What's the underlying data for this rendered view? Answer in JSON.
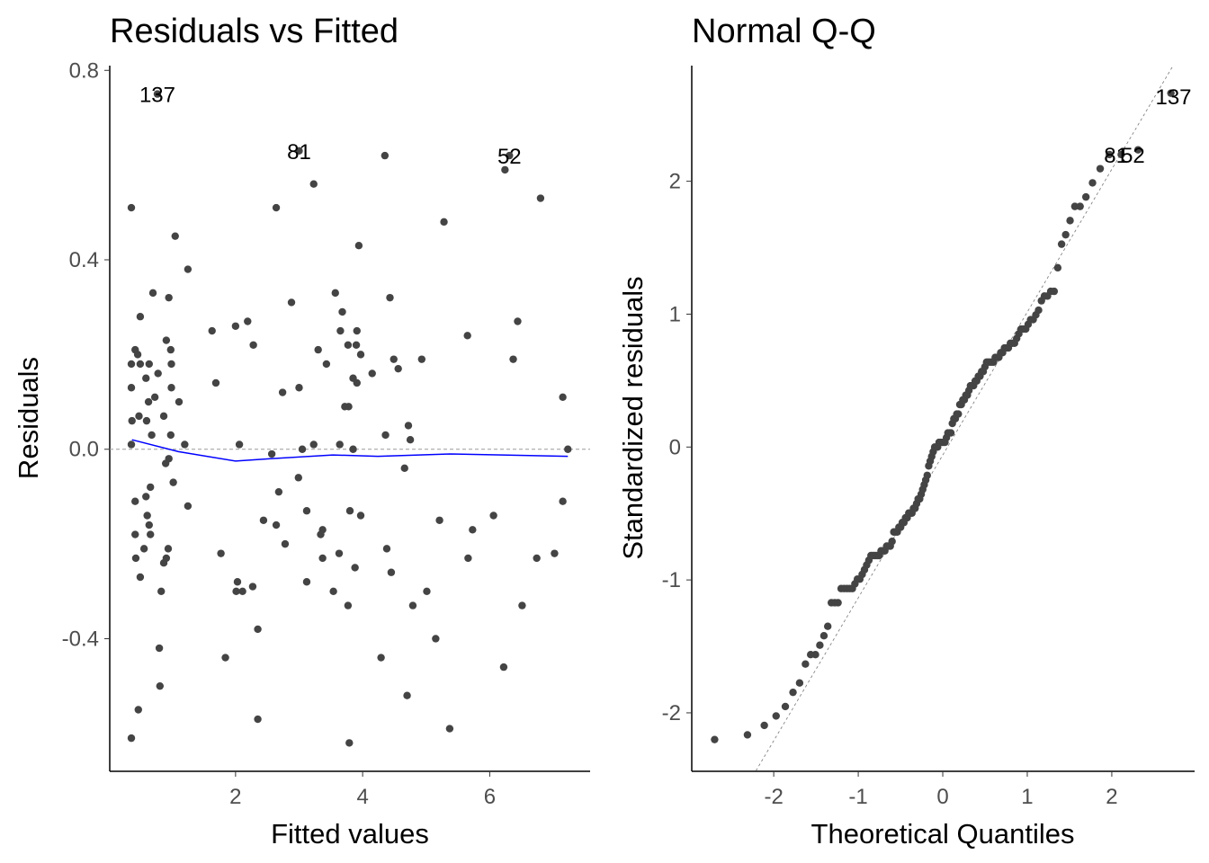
{
  "chart_data": [
    {
      "type": "scatter",
      "title": "Residuals vs Fitted",
      "xlabel": "Fitted values",
      "ylabel": "Residuals",
      "xlim": [
        0.02,
        7.58
      ],
      "ylim": [
        -0.68,
        0.81
      ],
      "xticks": [
        2,
        4,
        6
      ],
      "xtick_labels": [
        "2",
        "4",
        "6"
      ],
      "yticks": [
        -0.4,
        0.0,
        0.4,
        0.8
      ],
      "ytick_labels": [
        "-0.4",
        "0.0",
        "0.4",
        "0.8"
      ],
      "grid": false,
      "point_color": "#444444",
      "smooth_color": "#0000ff",
      "reference_line": {
        "y": 0,
        "style": "dashed",
        "color": "#999999"
      },
      "points": [
        [
          0.77,
          0.75
        ],
        [
          3.0,
          0.63
        ],
        [
          4.35,
          0.62
        ],
        [
          6.24,
          0.59
        ],
        [
          6.31,
          0.62
        ],
        [
          3.23,
          0.56
        ],
        [
          6.8,
          0.53
        ],
        [
          0.36,
          0.51
        ],
        [
          2.64,
          0.51
        ],
        [
          5.28,
          0.48
        ],
        [
          1.05,
          0.45
        ],
        [
          3.94,
          0.43
        ],
        [
          1.25,
          0.38
        ],
        [
          0.7,
          0.33
        ],
        [
          3.57,
          0.33
        ],
        [
          0.95,
          0.32
        ],
        [
          4.43,
          0.32
        ],
        [
          2.88,
          0.31
        ],
        [
          3.68,
          0.29
        ],
        [
          0.5,
          0.28
        ],
        [
          6.44,
          0.27
        ],
        [
          2.19,
          0.27
        ],
        [
          2.0,
          0.26
        ],
        [
          1.63,
          0.25
        ],
        [
          3.65,
          0.25
        ],
        [
          3.91,
          0.25
        ],
        [
          5.65,
          0.24
        ],
        [
          0.91,
          0.23
        ],
        [
          2.28,
          0.22
        ],
        [
          3.3,
          0.21
        ],
        [
          3.77,
          0.22
        ],
        [
          3.9,
          0.22
        ],
        [
          0.42,
          0.21
        ],
        [
          0.98,
          0.21
        ],
        [
          0.46,
          0.2
        ],
        [
          3.97,
          0.2
        ],
        [
          6.37,
          0.19
        ],
        [
          4.49,
          0.19
        ],
        [
          4.93,
          0.19
        ],
        [
          0.36,
          0.18
        ],
        [
          0.5,
          0.18
        ],
        [
          0.64,
          0.18
        ],
        [
          0.99,
          0.18
        ],
        [
          3.43,
          0.18
        ],
        [
          4.56,
          0.17
        ],
        [
          0.78,
          0.16
        ],
        [
          4.15,
          0.16
        ],
        [
          0.59,
          0.15
        ],
        [
          0.36,
          0.13
        ],
        [
          0.99,
          0.13
        ],
        [
          1.69,
          0.14
        ],
        [
          3.0,
          0.13
        ],
        [
          3.85,
          0.15
        ],
        [
          3.91,
          0.14
        ],
        [
          2.74,
          0.12
        ],
        [
          7.15,
          0.11
        ],
        [
          0.73,
          0.11
        ],
        [
          1.11,
          0.1
        ],
        [
          3.72,
          0.09
        ],
        [
          3.78,
          0.09
        ],
        [
          0.63,
          0.1
        ],
        [
          0.48,
          0.07
        ],
        [
          0.87,
          0.07
        ],
        [
          0.6,
          0.06
        ],
        [
          0.37,
          0.06
        ],
        [
          4.72,
          0.05
        ],
        [
          0.68,
          0.03
        ],
        [
          0.98,
          0.03
        ],
        [
          4.36,
          0.03
        ],
        [
          1.2,
          0.01
        ],
        [
          0.36,
          0.01
        ],
        [
          3.23,
          0.01
        ],
        [
          3.64,
          0.01
        ],
        [
          4.75,
          0.02
        ],
        [
          2.06,
          0.01
        ],
        [
          3.85,
          0.0
        ],
        [
          7.23,
          0.0
        ],
        [
          3.05,
          0.0
        ],
        [
          2.57,
          -0.01
        ],
        [
          0.95,
          -0.02
        ],
        [
          0.9,
          -0.03
        ],
        [
          4.66,
          -0.04
        ],
        [
          2.99,
          -0.06
        ],
        [
          1.02,
          -0.07
        ],
        [
          0.66,
          -0.08
        ],
        [
          2.68,
          -0.09
        ],
        [
          0.59,
          -0.1
        ],
        [
          0.42,
          -0.11
        ],
        [
          7.15,
          -0.11
        ],
        [
          1.25,
          -0.12
        ],
        [
          3.12,
          -0.13
        ],
        [
          3.8,
          -0.13
        ],
        [
          3.97,
          -0.14
        ],
        [
          0.61,
          -0.14
        ],
        [
          6.06,
          -0.14
        ],
        [
          5.21,
          -0.15
        ],
        [
          2.44,
          -0.15
        ],
        [
          2.64,
          -0.16
        ],
        [
          3.37,
          -0.17
        ],
        [
          3.34,
          -0.18
        ],
        [
          0.64,
          -0.16
        ],
        [
          0.42,
          -0.18
        ],
        [
          0.66,
          -0.18
        ],
        [
          5.73,
          -0.17
        ],
        [
          5.66,
          -0.23
        ],
        [
          2.78,
          -0.2
        ],
        [
          4.38,
          -0.21
        ],
        [
          0.56,
          -0.21
        ],
        [
          0.94,
          -0.21
        ],
        [
          1.77,
          -0.22
        ],
        [
          3.63,
          -0.22
        ],
        [
          7.02,
          -0.22
        ],
        [
          0.91,
          -0.23
        ],
        [
          0.43,
          -0.23
        ],
        [
          3.37,
          -0.23
        ],
        [
          0.87,
          -0.24
        ],
        [
          6.74,
          -0.23
        ],
        [
          3.88,
          -0.25
        ],
        [
          4.45,
          -0.26
        ],
        [
          0.5,
          -0.27
        ],
        [
          3.12,
          -0.28
        ],
        [
          2.03,
          -0.28
        ],
        [
          2.27,
          -0.29
        ],
        [
          3.54,
          -0.3
        ],
        [
          2.11,
          -0.3
        ],
        [
          2.01,
          -0.3
        ],
        [
          0.83,
          -0.3
        ],
        [
          5.01,
          -0.3
        ],
        [
          6.51,
          -0.33
        ],
        [
          3.77,
          -0.33
        ],
        [
          4.79,
          -0.33
        ],
        [
          2.35,
          -0.38
        ],
        [
          5.15,
          -0.4
        ],
        [
          0.8,
          -0.42
        ],
        [
          1.84,
          -0.44
        ],
        [
          6.22,
          -0.46
        ],
        [
          4.29,
          -0.44
        ],
        [
          0.81,
          -0.5
        ],
        [
          4.7,
          -0.52
        ],
        [
          0.47,
          -0.55
        ],
        [
          2.35,
          -0.57
        ],
        [
          5.37,
          -0.59
        ],
        [
          0.36,
          -0.61
        ],
        [
          3.79,
          -0.62
        ]
      ],
      "smooth": [
        [
          0.37,
          0.02
        ],
        [
          1.1,
          -0.005
        ],
        [
          2.0,
          -0.025
        ],
        [
          2.55,
          -0.02
        ],
        [
          3.53,
          -0.012
        ],
        [
          4.24,
          -0.015
        ],
        [
          5.37,
          -0.01
        ],
        [
          6.2,
          -0.012
        ],
        [
          7.23,
          -0.015
        ]
      ],
      "annotations": [
        {
          "label": "137",
          "x": 0.77,
          "y": 0.75
        },
        {
          "label": "81",
          "x": 3.0,
          "y": 0.63
        },
        {
          "label": "52",
          "x": 6.31,
          "y": 0.62
        }
      ]
    },
    {
      "type": "scatter",
      "title": "Normal Q-Q",
      "xlabel": "Theoretical Quantiles",
      "ylabel": "Standardized residuals",
      "xlim": [
        -2.97,
        2.98
      ],
      "ylim": [
        -2.44,
        2.87
      ],
      "xticks": [
        -2,
        -1,
        0,
        1,
        2
      ],
      "xtick_labels": [
        "-2",
        "-1",
        "0",
        "1",
        "2"
      ],
      "yticks": [
        -2,
        -1,
        0,
        1,
        2
      ],
      "ytick_labels": [
        "-2",
        "-1",
        "0",
        "1",
        "2"
      ],
      "grid": false,
      "point_color": "#444444",
      "reference_line": {
        "slope": 1.075,
        "intercept": -0.06,
        "style": "dashed",
        "color": "#777777"
      },
      "annotations": [
        {
          "label": "137",
          "x": 2.73,
          "y": 2.64
        },
        {
          "label": "81",
          "x": 2.05,
          "y": 2.2
        },
        {
          "label": "52",
          "x": 2.25,
          "y": 2.2
        }
      ]
    }
  ]
}
